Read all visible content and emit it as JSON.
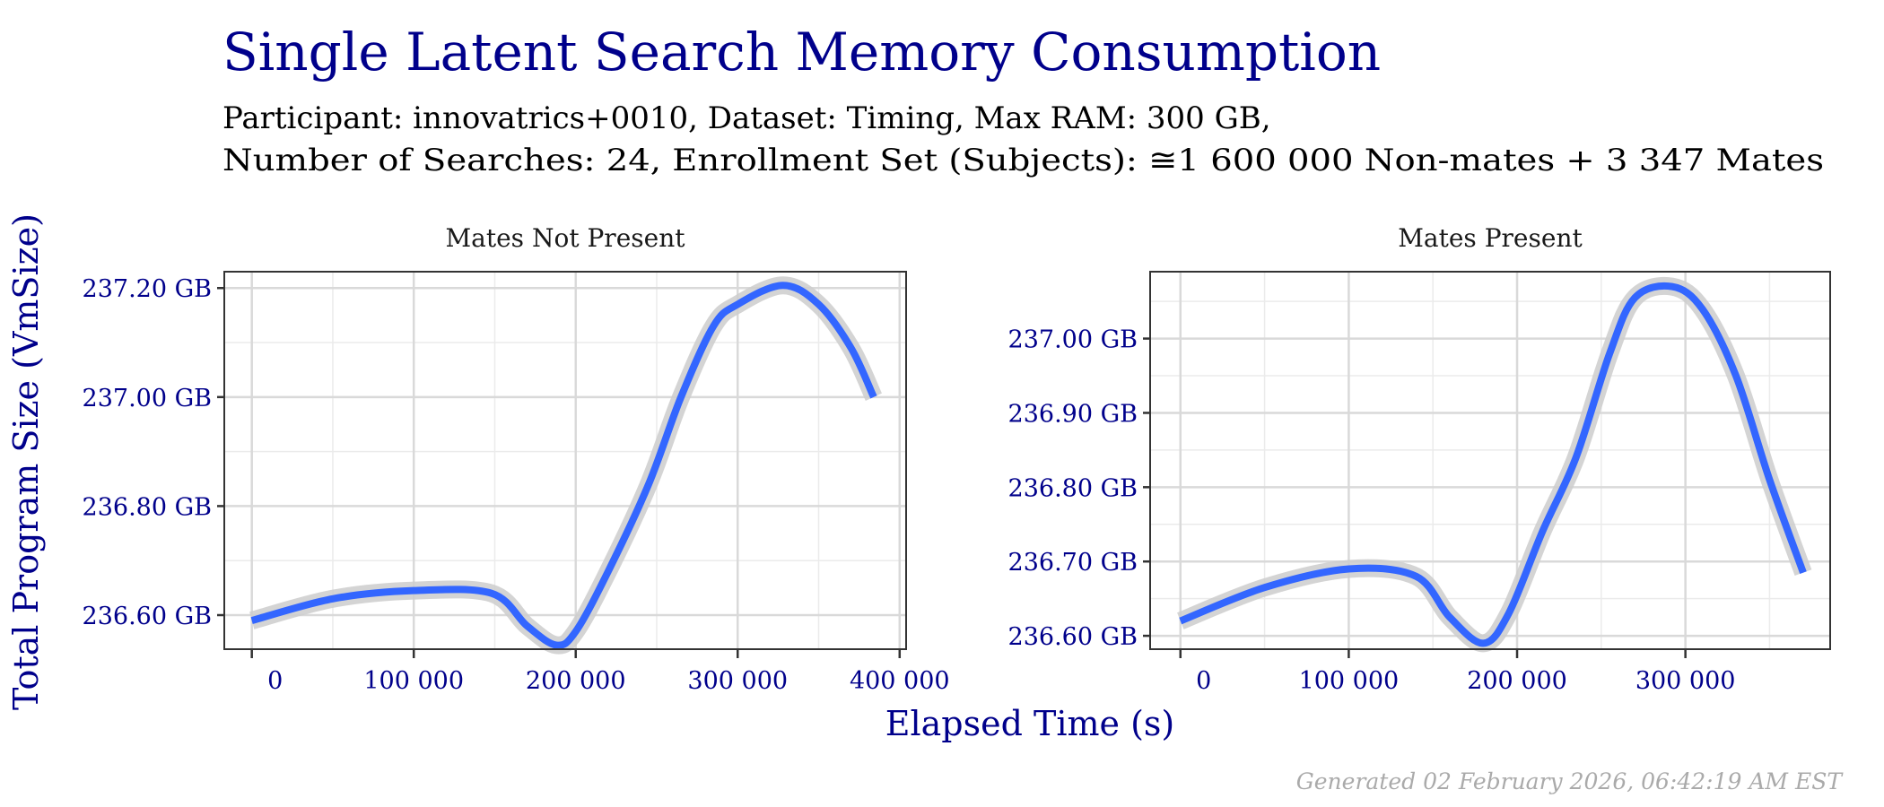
{
  "title": "Single Latent Search Memory Consumption",
  "subtitle_lines": [
    "Participant: innovatrics+0010, Dataset: Timing, Max RAM: 300 GB,",
    "Number of Searches: 24, Enrollment Set (Subjects): ≅1 600 000 Non-mates + 3 347 Mates"
  ],
  "footer": "Generated 02 February 2026, 06:42:19 AM EST",
  "colors": {
    "title": "#00008B",
    "line": "#3366FF",
    "ribbon": "#CCCCCC",
    "grid": "#D9D9D9",
    "footer": "#AAAAAA"
  },
  "chart_data": [
    {
      "type": "line",
      "panel": "Mates Not Present",
      "xlabel": "Elapsed Time (s)",
      "ylabel": "Total Program Size (VmSize)",
      "xlim": [
        -17000,
        404000
      ],
      "ylim": [
        236.5375,
        237.23
      ],
      "xticks": [
        0,
        100000,
        200000,
        300000,
        400000
      ],
      "xtick_labels": [
        "0",
        "100 000",
        "200 000",
        "300 000",
        "400 000"
      ],
      "yticks": [
        236.6,
        236.8,
        237.0,
        237.2
      ],
      "ytick_labels": [
        "236.60 GB",
        "236.80 GB",
        "237.00 GB",
        "237.20 GB"
      ],
      "grid": true,
      "x": [
        0,
        50000,
        100000,
        148000,
        170000,
        188000,
        200000,
        220000,
        245000,
        265000,
        285000,
        300000,
        328000,
        350000,
        370000,
        384000
      ],
      "y": [
        236.59,
        236.63,
        236.645,
        236.64,
        236.58,
        236.545,
        236.57,
        236.68,
        236.84,
        237.0,
        237.13,
        237.17,
        237.205,
        237.17,
        237.09,
        237.0
      ]
    },
    {
      "type": "line",
      "panel": "Mates Present",
      "xlim": [
        -18000,
        386000
      ],
      "ylim": [
        236.582,
        237.09
      ],
      "xticks": [
        0,
        100000,
        200000,
        300000
      ],
      "xtick_labels": [
        "0",
        "100 000",
        "200 000",
        "300 000"
      ],
      "yticks": [
        236.6,
        236.7,
        236.8,
        236.9,
        237.0
      ],
      "ytick_labels": [
        "236.60 GB",
        "236.70 GB",
        "236.80 GB",
        "236.90 GB",
        "237.00 GB"
      ],
      "grid": true,
      "x": [
        0,
        50000,
        100000,
        140000,
        160000,
        180000,
        195000,
        215000,
        235000,
        255000,
        270000,
        292000,
        310000,
        330000,
        350000,
        370000
      ],
      "y": [
        236.62,
        236.665,
        236.69,
        236.68,
        236.625,
        236.59,
        236.63,
        236.74,
        236.84,
        236.98,
        237.055,
        237.07,
        237.04,
        236.95,
        236.81,
        236.685
      ]
    }
  ]
}
